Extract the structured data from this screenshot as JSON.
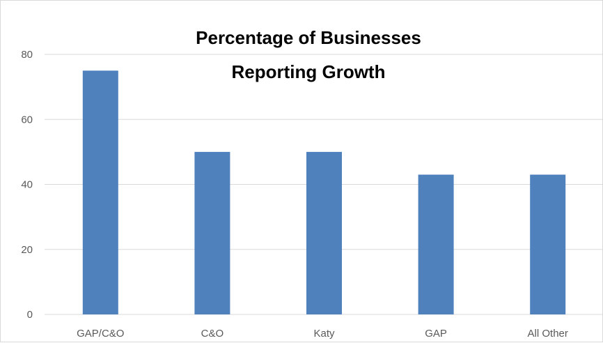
{
  "chart_data": {
    "type": "bar",
    "title_lines": [
      "Percentage of Businesses",
      "Reporting Growth"
    ],
    "categories": [
      "GAP/C&O",
      "C&O",
      "Katy",
      "GAP",
      "All Other"
    ],
    "values": [
      75,
      50,
      50,
      43,
      43
    ],
    "ylim": [
      0,
      80
    ],
    "yticks": [
      "0",
      "20",
      "40",
      "60",
      "80"
    ],
    "ytick_values": [
      0,
      20,
      40,
      60,
      80
    ],
    "xlabel": "",
    "ylabel": "",
    "grid": true,
    "legend": "none",
    "bar_color": "#4f81bd"
  }
}
